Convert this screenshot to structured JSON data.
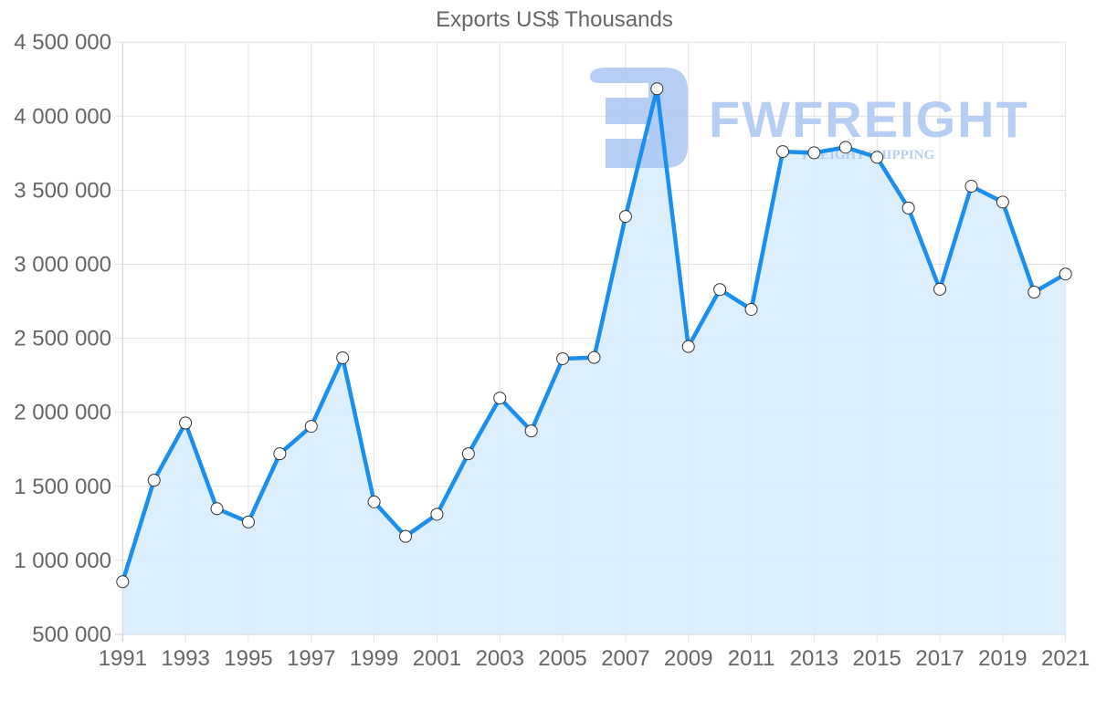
{
  "chart_data": {
    "type": "area",
    "title": "Exports US$ Thousands",
    "xlabel": "",
    "ylabel": "",
    "categories": [
      1991,
      1992,
      1993,
      1994,
      1995,
      1996,
      1997,
      1998,
      1999,
      2000,
      2001,
      2002,
      2003,
      2004,
      2005,
      2006,
      2007,
      2008,
      2009,
      2010,
      2011,
      2012,
      2013,
      2014,
      2015,
      2016,
      2017,
      2018,
      2019,
      2020,
      2021
    ],
    "x_tick_labels": [
      "1991",
      "1993",
      "1995",
      "1997",
      "1999",
      "2001",
      "2003",
      "2005",
      "2007",
      "2009",
      "2011",
      "2013",
      "2015",
      "2017",
      "2019",
      "2021"
    ],
    "y_tick_labels": [
      "500 000",
      "1 000 000",
      "1 500 000",
      "2 000 000",
      "2 500 000",
      "3 000 000",
      "3 500 000",
      "4 000 000",
      "4 500 000"
    ],
    "y_ticks": [
      500000,
      1000000,
      1500000,
      2000000,
      2500000,
      3000000,
      3500000,
      4000000,
      4500000
    ],
    "ylim": [
      500000,
      4500000
    ],
    "grid": true,
    "legend": null,
    "series": [
      {
        "name": "Exports US$ Thousands",
        "values": [
          856000,
          1541000,
          1928000,
          1349000,
          1259000,
          1720000,
          1905000,
          2368000,
          1395000,
          1162000,
          1311000,
          1720000,
          2096000,
          1874000,
          2362000,
          2370000,
          3323000,
          4185000,
          2444000,
          2829000,
          2695000,
          3761000,
          3753000,
          3790000,
          3722000,
          3380000,
          2831000,
          3527000,
          3420000,
          2812000,
          2934000
        ]
      }
    ]
  },
  "colors": {
    "line": "#1a8fef",
    "fill": "#d9ecfc",
    "grid": "#e2e2e2",
    "text": "#666666",
    "marker_fill": "#ffffff",
    "marker_stroke": "#333333",
    "watermark": "#a9c6f2"
  },
  "watermark": {
    "brand": "FWFREIGHT",
    "tagline": "FREIGHT SHIPPING"
  }
}
